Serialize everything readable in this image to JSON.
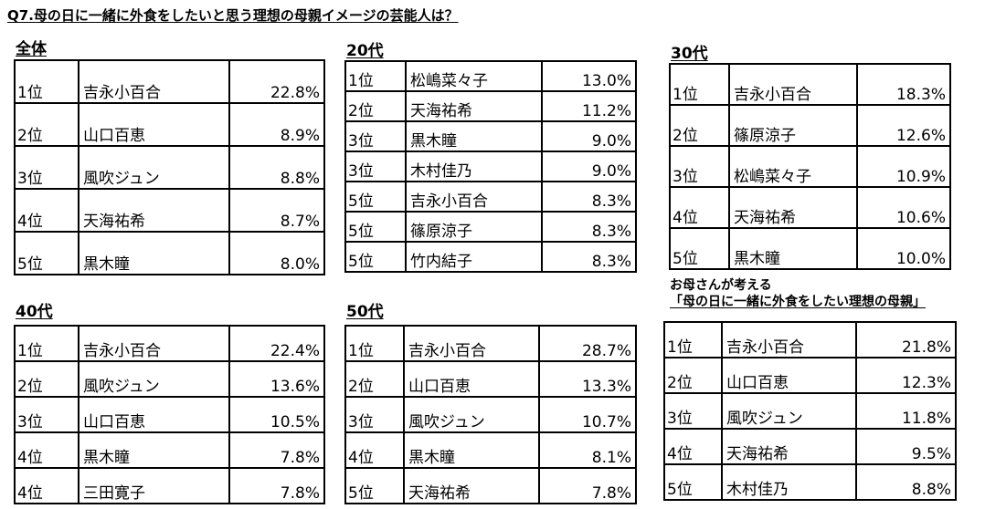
{
  "title": "Q7.母の日に一緒に外食をしたいと思う理想の母親イメージの芸能人は？",
  "sections": [
    {
      "heading": "全体",
      "rows": [
        {
          "rank": "1位",
          "name": "吉永小百合",
          "pct": "22.8%"
        },
        {
          "rank": "2位",
          "name": "山口百恵",
          "pct": "8.9%"
        },
        {
          "rank": "3位",
          "name": "風吹ジュン",
          "pct": "8.8%"
        },
        {
          "rank": "4位",
          "name": "天海祐希",
          "pct": "8.7%"
        },
        {
          "rank": "5位",
          "name": "黒木瞳",
          "pct": "8.0%"
        }
      ]
    },
    {
      "heading": "20代",
      "rows": [
        {
          "rank": "1位",
          "name": "松嶋菜々子",
          "pct": "13.0%"
        },
        {
          "rank": "2位",
          "name": "天海祐希",
          "pct": "11.2%"
        },
        {
          "rank": "3位",
          "name": "黒木瞳",
          "pct": "9.0%"
        },
        {
          "rank": "3位",
          "name": "木村佳乃",
          "pct": "9.0%"
        },
        {
          "rank": "5位",
          "name": "吉永小百合",
          "pct": "8.3%"
        },
        {
          "rank": "5位",
          "name": "篠原涼子",
          "pct": "8.3%"
        },
        {
          "rank": "5位",
          "name": "竹内結子",
          "pct": "8.3%"
        }
      ]
    },
    {
      "heading": "30代",
      "rows": [
        {
          "rank": "1位",
          "name": "吉永小百合",
          "pct": "18.3%"
        },
        {
          "rank": "2位",
          "name": "篠原涼子",
          "pct": "12.6%"
        },
        {
          "rank": "3位",
          "name": "松嶋菜々子",
          "pct": "10.9%"
        },
        {
          "rank": "4位",
          "name": "天海祐希",
          "pct": "10.6%"
        },
        {
          "rank": "5位",
          "name": "黒木瞳",
          "pct": "10.0%"
        }
      ]
    },
    {
      "heading": "40代",
      "rows": [
        {
          "rank": "1位",
          "name": "吉永小百合",
          "pct": "22.4%"
        },
        {
          "rank": "2位",
          "name": "風吹ジュン",
          "pct": "13.6%"
        },
        {
          "rank": "3位",
          "name": "山口百恵",
          "pct": "10.5%"
        },
        {
          "rank": "4位",
          "name": "黒木瞳",
          "pct": "7.8%"
        },
        {
          "rank": "4位",
          "name": "三田寛子",
          "pct": "7.8%"
        }
      ]
    },
    {
      "heading": "50代",
      "rows": [
        {
          "rank": "1位",
          "name": "吉永小百合",
          "pct": "28.7%"
        },
        {
          "rank": "2位",
          "name": "山口百恵",
          "pct": "13.3%"
        },
        {
          "rank": "3位",
          "name": "風吹ジュン",
          "pct": "10.7%"
        },
        {
          "rank": "4位",
          "name": "黒木瞳",
          "pct": "8.1%"
        },
        {
          "rank": "5位",
          "name": "天海祐希",
          "pct": "7.8%"
        }
      ]
    },
    {
      "heading_line1": "お母さんが考える",
      "heading_line2": "「母の日に一緒に外食をしたい理想の母親」",
      "rows": [
        {
          "rank": "1位",
          "name": "吉永小百合",
          "pct": "21.8%"
        },
        {
          "rank": "2位",
          "name": "山口百恵",
          "pct": "12.3%"
        },
        {
          "rank": "3位",
          "name": "風吹ジュン",
          "pct": "11.8%"
        },
        {
          "rank": "4位",
          "name": "天海祐希",
          "pct": "9.5%"
        },
        {
          "rank": "5位",
          "name": "木村佳乃",
          "pct": "8.8%"
        }
      ]
    }
  ]
}
